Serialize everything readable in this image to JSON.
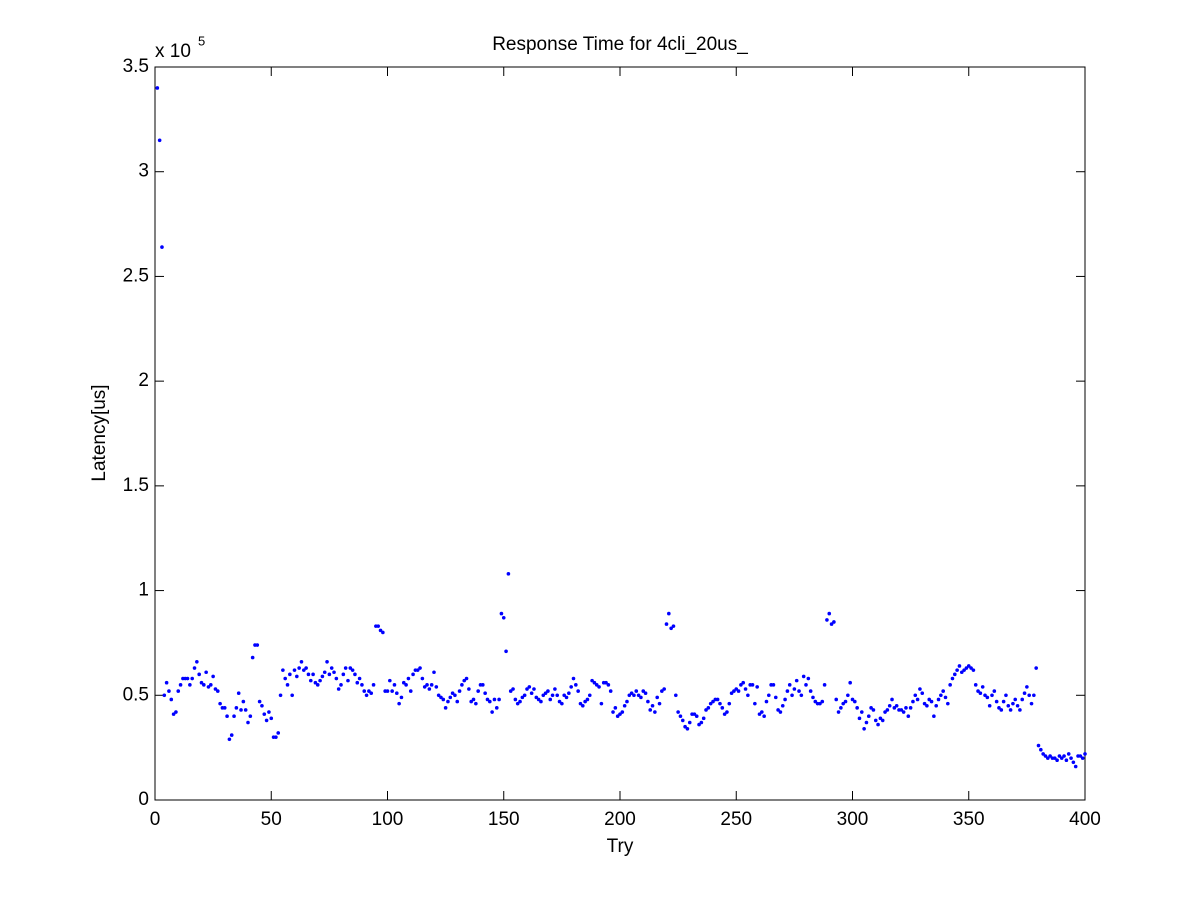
{
  "chart_data": {
    "type": "scatter",
    "title": "Response Time for 4cli_20us_",
    "x_label": "Try",
    "y_label": "Latency[us]",
    "y_exponent_base": "x 10",
    "y_exponent": "5",
    "xlim": [
      0,
      400
    ],
    "xticks": [
      0,
      50,
      100,
      150,
      200,
      250,
      300,
      350,
      400
    ],
    "ylim": [
      0,
      3.5
    ],
    "yticks": [
      0,
      0.5,
      1,
      1.5,
      2,
      2.5,
      3,
      3.5
    ],
    "grid": false,
    "color": "#0000ff",
    "x": [
      1,
      2,
      3,
      4,
      5,
      6,
      7,
      8,
      9,
      10,
      11,
      12,
      13,
      14,
      15,
      16,
      17,
      18,
      19,
      20,
      21,
      22,
      23,
      24,
      25,
      26,
      27,
      28,
      29,
      30,
      31,
      32,
      33,
      34,
      35,
      36,
      37,
      38,
      39,
      40,
      41,
      42,
      43,
      44,
      45,
      46,
      47,
      48,
      49,
      50,
      51,
      52,
      53,
      54,
      55,
      56,
      57,
      58,
      59,
      60,
      61,
      62,
      63,
      64,
      65,
      66,
      67,
      68,
      69,
      70,
      71,
      72,
      73,
      74,
      75,
      76,
      77,
      78,
      79,
      80,
      81,
      82,
      83,
      84,
      85,
      86,
      87,
      88,
      89,
      90,
      91,
      92,
      93,
      94,
      95,
      96,
      97,
      98,
      99,
      100,
      101,
      102,
      103,
      104,
      105,
      106,
      107,
      108,
      109,
      110,
      111,
      112,
      113,
      114,
      115,
      116,
      117,
      118,
      119,
      120,
      121,
      122,
      123,
      124,
      125,
      126,
      127,
      128,
      129,
      130,
      131,
      132,
      133,
      134,
      135,
      136,
      137,
      138,
      139,
      140,
      141,
      142,
      143,
      144,
      145,
      146,
      147,
      148,
      149,
      150,
      151,
      152,
      153,
      154,
      155,
      156,
      157,
      158,
      159,
      160,
      161,
      162,
      163,
      164,
      165,
      166,
      167,
      168,
      169,
      170,
      171,
      172,
      173,
      174,
      175,
      176,
      177,
      178,
      179,
      180,
      181,
      182,
      183,
      184,
      185,
      186,
      187,
      188,
      189,
      190,
      191,
      192,
      193,
      194,
      195,
      196,
      197,
      198,
      199,
      200,
      201,
      202,
      203,
      204,
      205,
      206,
      207,
      208,
      209,
      210,
      211,
      212,
      213,
      214,
      215,
      216,
      217,
      218,
      219,
      220,
      221,
      222,
      223,
      224,
      225,
      226,
      227,
      228,
      229,
      230,
      231,
      232,
      233,
      234,
      235,
      236,
      237,
      238,
      239,
      240,
      241,
      242,
      243,
      244,
      245,
      246,
      247,
      248,
      249,
      250,
      251,
      252,
      253,
      254,
      255,
      256,
      257,
      258,
      259,
      260,
      261,
      262,
      263,
      264,
      265,
      266,
      267,
      268,
      269,
      270,
      271,
      272,
      273,
      274,
      275,
      276,
      277,
      278,
      279,
      280,
      281,
      282,
      283,
      284,
      285,
      286,
      287,
      288,
      289,
      290,
      291,
      292,
      293,
      294,
      295,
      296,
      297,
      298,
      299,
      300,
      301,
      302,
      303,
      304,
      305,
      306,
      307,
      308,
      309,
      310,
      311,
      312,
      313,
      314,
      315,
      316,
      317,
      318,
      319,
      320,
      321,
      322,
      323,
      324,
      325,
      326,
      327,
      328,
      329,
      330,
      331,
      332,
      333,
      334,
      335,
      336,
      337,
      338,
      339,
      340,
      341,
      342,
      343,
      344,
      345,
      346,
      347,
      348,
      349,
      350,
      351,
      352,
      353,
      354,
      355,
      356,
      357,
      358,
      359,
      360,
      361,
      362,
      363,
      364,
      365,
      366,
      367,
      368,
      369,
      370,
      371,
      372,
      373,
      374,
      375,
      376,
      377,
      378,
      379,
      380,
      381,
      382,
      383,
      384,
      385,
      386,
      387,
      388,
      389,
      390,
      391,
      392,
      393,
      394,
      395,
      396,
      397,
      398,
      399,
      400
    ],
    "values": [
      3.4,
      3.15,
      2.64,
      0.5,
      0.56,
      0.52,
      0.48,
      0.41,
      0.42,
      0.52,
      0.55,
      0.58,
      0.58,
      0.58,
      0.55,
      0.58,
      0.63,
      0.66,
      0.6,
      0.56,
      0.55,
      0.61,
      0.54,
      0.55,
      0.59,
      0.53,
      0.52,
      0.46,
      0.44,
      0.44,
      0.4,
      0.29,
      0.31,
      0.4,
      0.44,
      0.51,
      0.43,
      0.47,
      0.43,
      0.37,
      0.4,
      0.68,
      0.74,
      0.74,
      0.47,
      0.45,
      0.41,
      0.38,
      0.42,
      0.39,
      0.3,
      0.3,
      0.32,
      0.5,
      0.62,
      0.58,
      0.55,
      0.6,
      0.5,
      0.62,
      0.59,
      0.63,
      0.66,
      0.62,
      0.63,
      0.6,
      0.57,
      0.6,
      0.56,
      0.55,
      0.57,
      0.59,
      0.61,
      0.66,
      0.6,
      0.63,
      0.61,
      0.58,
      0.53,
      0.55,
      0.6,
      0.63,
      0.57,
      0.63,
      0.62,
      0.6,
      0.56,
      0.58,
      0.55,
      0.52,
      0.5,
      0.52,
      0.51,
      0.55,
      0.83,
      0.83,
      0.81,
      0.8,
      0.52,
      0.52,
      0.57,
      0.52,
      0.55,
      0.51,
      0.46,
      0.49,
      0.56,
      0.55,
      0.58,
      0.52,
      0.6,
      0.62,
      0.62,
      0.63,
      0.58,
      0.54,
      0.55,
      0.53,
      0.55,
      0.61,
      0.54,
      0.5,
      0.49,
      0.48,
      0.44,
      0.47,
      0.49,
      0.51,
      0.5,
      0.47,
      0.52,
      0.55,
      0.57,
      0.58,
      0.53,
      0.47,
      0.48,
      0.46,
      0.52,
      0.55,
      0.55,
      0.51,
      0.48,
      0.47,
      0.42,
      0.48,
      0.44,
      0.48,
      0.89,
      0.87,
      0.71,
      1.08,
      0.52,
      0.53,
      0.48,
      0.46,
      0.47,
      0.49,
      0.5,
      0.53,
      0.54,
      0.51,
      0.53,
      0.49,
      0.48,
      0.47,
      0.5,
      0.51,
      0.52,
      0.48,
      0.5,
      0.53,
      0.5,
      0.47,
      0.46,
      0.5,
      0.49,
      0.51,
      0.54,
      0.58,
      0.55,
      0.52,
      0.46,
      0.45,
      0.47,
      0.48,
      0.5,
      0.57,
      0.56,
      0.55,
      0.54,
      0.46,
      0.56,
      0.56,
      0.55,
      0.52,
      0.42,
      0.44,
      0.4,
      0.41,
      0.42,
      0.45,
      0.47,
      0.5,
      0.51,
      0.5,
      0.52,
      0.5,
      0.49,
      0.52,
      0.51,
      0.47,
      0.43,
      0.45,
      0.42,
      0.49,
      0.46,
      0.52,
      0.53,
      0.84,
      0.89,
      0.82,
      0.83,
      0.5,
      0.42,
      0.4,
      0.38,
      0.35,
      0.34,
      0.37,
      0.41,
      0.41,
      0.4,
      0.36,
      0.37,
      0.39,
      0.43,
      0.44,
      0.46,
      0.47,
      0.48,
      0.48,
      0.46,
      0.44,
      0.41,
      0.42,
      0.46,
      0.51,
      0.52,
      0.53,
      0.52,
      0.55,
      0.56,
      0.53,
      0.5,
      0.55,
      0.55,
      0.46,
      0.54,
      0.41,
      0.42,
      0.4,
      0.47,
      0.5,
      0.55,
      0.55,
      0.49,
      0.43,
      0.42,
      0.45,
      0.48,
      0.52,
      0.55,
      0.5,
      0.53,
      0.57,
      0.52,
      0.5,
      0.59,
      0.55,
      0.58,
      0.52,
      0.49,
      0.47,
      0.46,
      0.46,
      0.47,
      0.55,
      0.86,
      0.89,
      0.84,
      0.85,
      0.48,
      0.42,
      0.44,
      0.46,
      0.47,
      0.5,
      0.56,
      0.48,
      0.47,
      0.44,
      0.39,
      0.42,
      0.34,
      0.37,
      0.4,
      0.44,
      0.43,
      0.38,
      0.36,
      0.39,
      0.38,
      0.42,
      0.43,
      0.45,
      0.48,
      0.44,
      0.45,
      0.43,
      0.43,
      0.42,
      0.44,
      0.4,
      0.44,
      0.47,
      0.5,
      0.48,
      0.53,
      0.51,
      0.46,
      0.45,
      0.48,
      0.47,
      0.4,
      0.45,
      0.48,
      0.5,
      0.52,
      0.49,
      0.46,
      0.55,
      0.58,
      0.6,
      0.62,
      0.64,
      0.61,
      0.62,
      0.63,
      0.64,
      0.63,
      0.62,
      0.55,
      0.52,
      0.51,
      0.54,
      0.5,
      0.49,
      0.45,
      0.5,
      0.52,
      0.47,
      0.44,
      0.43,
      0.47,
      0.5,
      0.45,
      0.43,
      0.46,
      0.48,
      0.45,
      0.43,
      0.48,
      0.51,
      0.54,
      0.5,
      0.46,
      0.5,
      0.63,
      0.26,
      0.24,
      0.22,
      0.21,
      0.2,
      0.21,
      0.2,
      0.2,
      0.19,
      0.21,
      0.2,
      0.21,
      0.19,
      0.22,
      0.2,
      0.18,
      0.16,
      0.21,
      0.21,
      0.2,
      0.22
    ]
  }
}
